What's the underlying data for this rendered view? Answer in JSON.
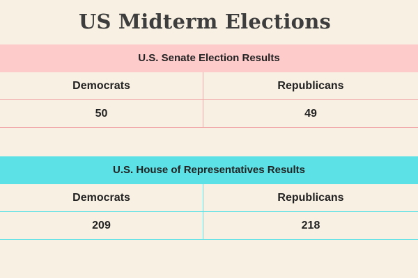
{
  "title": "US Midterm Elections",
  "senate": {
    "header": "U.S. Senate Election Results",
    "columns": [
      "Democrats",
      "Republicans"
    ],
    "values": [
      "50",
      "49"
    ],
    "header_color": "#fecbcb",
    "line_color": "#f2a9a9"
  },
  "house": {
    "header": "U.S. House of Representatives Results",
    "columns": [
      "Democrats",
      "Republicans"
    ],
    "values": [
      "209",
      "218"
    ],
    "header_color": "#5ce1e6",
    "line_color": "#5ce1e6"
  }
}
